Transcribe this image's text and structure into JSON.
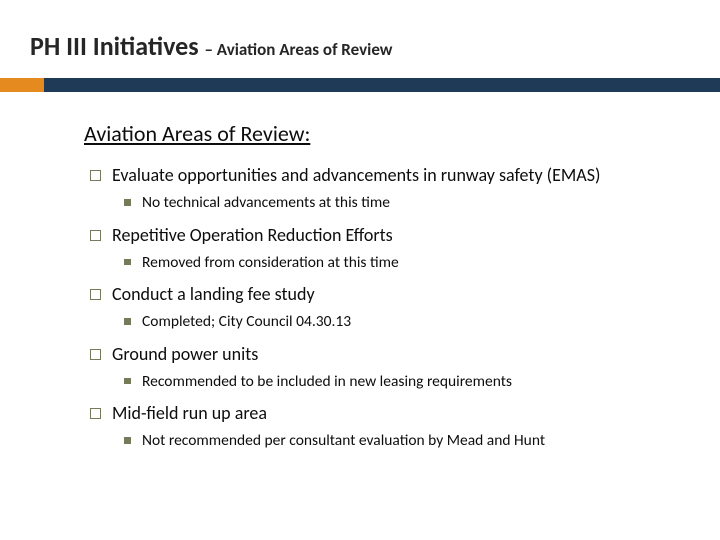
{
  "title": {
    "main": "PH III Initiatives ",
    "sub": "– Aviation Areas of Review"
  },
  "section_heading": "Aviation Areas of Review:",
  "items": [
    {
      "text": "Evaluate opportunities and advancements in runway safety (EMAS)",
      "sub": [
        {
          "text": "No technical advancements at this time"
        }
      ]
    },
    {
      "text": "Repetitive Operation Reduction Efforts",
      "sub": [
        {
          "text": "Removed from consideration at this time"
        }
      ]
    },
    {
      "text": "Conduct a landing fee study",
      "sub": [
        {
          "text": "Completed; City Council 04.30.13"
        }
      ]
    },
    {
      "text": "Ground power units",
      "sub": [
        {
          "text": "Recommended to be included in new leasing requirements"
        }
      ]
    },
    {
      "text": "Mid-field run up area",
      "sub": [
        {
          "text": "Not recommended per consultant evaluation by Mead and Hunt"
        }
      ]
    }
  ],
  "colors": {
    "divider_dark": "#1f3a57",
    "divider_accent": "#e58a1f",
    "bullet": "#777a5a",
    "text": "#0d0d0d",
    "title": "#262626",
    "background": "#ffffff"
  }
}
